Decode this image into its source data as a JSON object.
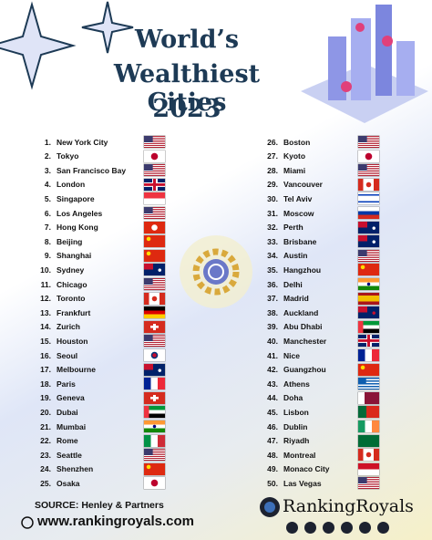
{
  "header": {
    "title_lines": [
      "World’s",
      "Wealthiest Cities",
      "2023"
    ]
  },
  "cities": [
    {
      "rank": "1.",
      "name": "New York City"
    },
    {
      "rank": "2.",
      "name": "Tokyo"
    },
    {
      "rank": "3.",
      "name": "San Francisco Bay"
    },
    {
      "rank": "4.",
      "name": "London"
    },
    {
      "rank": "5.",
      "name": "Singapore"
    },
    {
      "rank": "6.",
      "name": "Los Angeles"
    },
    {
      "rank": "7.",
      "name": "Hong Kong"
    },
    {
      "rank": "8.",
      "name": "Beijing"
    },
    {
      "rank": "9.",
      "name": "Shanghai"
    },
    {
      "rank": "10.",
      "name": "Sydney"
    },
    {
      "rank": "11.",
      "name": "Chicago"
    },
    {
      "rank": "12.",
      "name": "Toronto"
    },
    {
      "rank": "13.",
      "name": "Frankfurt"
    },
    {
      "rank": "14.",
      "name": "Zurich"
    },
    {
      "rank": "15.",
      "name": "Houston"
    },
    {
      "rank": "16.",
      "name": "Seoul"
    },
    {
      "rank": "17.",
      "name": "Melbourne"
    },
    {
      "rank": "18.",
      "name": "Paris"
    },
    {
      "rank": "19.",
      "name": "Geneva"
    },
    {
      "rank": "20.",
      "name": "Dubai"
    },
    {
      "rank": "21.",
      "name": "Mumbai"
    },
    {
      "rank": "22.",
      "name": "Rome"
    },
    {
      "rank": "23.",
      "name": "Seattle"
    },
    {
      "rank": "24.",
      "name": "Shenzhen"
    },
    {
      "rank": "25.",
      "name": "Osaka"
    },
    {
      "rank": "26.",
      "name": "Boston"
    },
    {
      "rank": "27.",
      "name": "Kyoto"
    },
    {
      "rank": "28.",
      "name": "Miami"
    },
    {
      "rank": "29.",
      "name": "Vancouver"
    },
    {
      "rank": "30.",
      "name": "Tel Aviv"
    },
    {
      "rank": "31.",
      "name": "Moscow"
    },
    {
      "rank": "32.",
      "name": "Perth"
    },
    {
      "rank": "33.",
      "name": "Brisbane"
    },
    {
      "rank": "34.",
      "name": "Austin"
    },
    {
      "rank": "35.",
      "name": "Hangzhou"
    },
    {
      "rank": "36.",
      "name": "Delhi"
    },
    {
      "rank": "37.",
      "name": "Madrid"
    },
    {
      "rank": "38.",
      "name": "Auckland"
    },
    {
      "rank": "39.",
      "name": "Abu Dhabi"
    },
    {
      "rank": "40.",
      "name": "Manchester"
    },
    {
      "rank": "41.",
      "name": "Nice"
    },
    {
      "rank": "42.",
      "name": "Guangzhou"
    },
    {
      "rank": "43.",
      "name": "Athens"
    },
    {
      "rank": "44.",
      "name": "Doha"
    },
    {
      "rank": "45.",
      "name": "Lisbon"
    },
    {
      "rank": "46.",
      "name": "Dublin"
    },
    {
      "rank": "47.",
      "name": "Riyadh"
    },
    {
      "rank": "48.",
      "name": "Montreal"
    },
    {
      "rank": "49.",
      "name": "Monaco City"
    },
    {
      "rank": "50.",
      "name": "Las Vegas"
    }
  ],
  "footer": {
    "source": "SOURCE: Henley & Partners",
    "website": "www.rankingroyals.com",
    "brand": "RankingRoyals"
  }
}
